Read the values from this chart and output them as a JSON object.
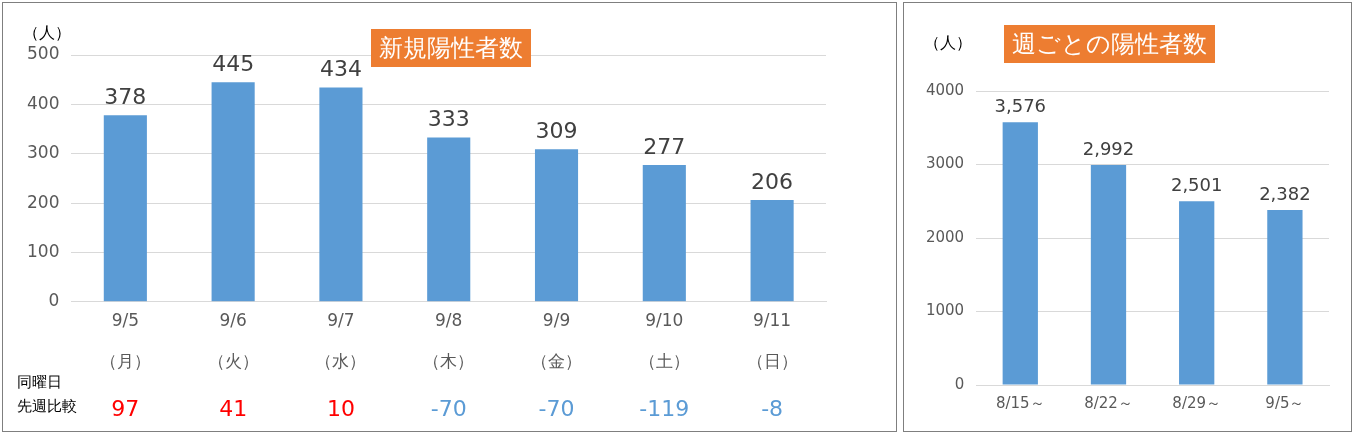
{
  "chart_data": [
    {
      "type": "bar",
      "title": "新規陽性者数",
      "ylabel": "（人）",
      "categories": [
        "9/5\n（月）",
        "9/6\n（火）",
        "9/7\n（水）",
        "9/8\n（木）",
        "9/9\n（金）",
        "9/10\n（土）",
        "9/11\n（日）"
      ],
      "values": [
        378,
        445,
        434,
        333,
        309,
        277,
        206
      ],
      "color": "#5b9bd5",
      "ylim": [
        0,
        500
      ],
      "yticks": [
        0,
        100,
        200,
        300,
        400,
        500
      ],
      "grid": "y",
      "data_labels": true,
      "annotations": [
        "同曜日",
        "先週比較",
        "97",
        "41",
        "10",
        "-70",
        "-70",
        "-119",
        "-8"
      ]
    },
    {
      "type": "bar",
      "title": "週ごとの陽性者数",
      "ylabel": "（人）",
      "categories": [
        "8/15～",
        "8/22～",
        "8/29～",
        "9/5～"
      ],
      "values": [
        3576,
        2992,
        2501,
        2382
      ],
      "color": "#5b9bd5",
      "ylim": [
        0,
        4000
      ],
      "yticks": [
        0,
        1000,
        2000,
        3000,
        4000
      ],
      "grid": "y",
      "value_labels": [
        "3,576",
        "2,992",
        "2,501",
        "2,382"
      ]
    }
  ]
}
